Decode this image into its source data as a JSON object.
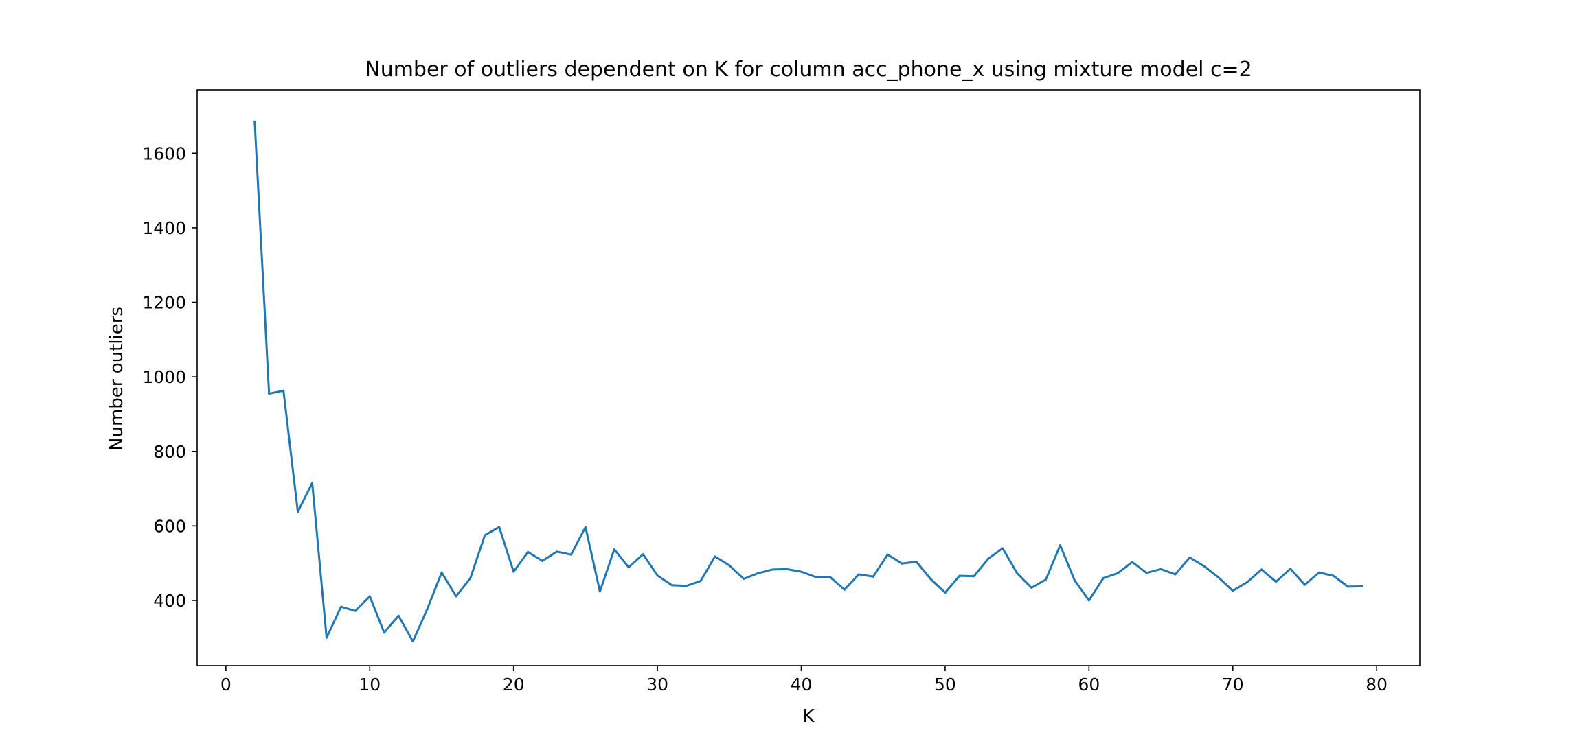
{
  "chart_data": {
    "type": "line",
    "title": "Number of outliers dependent on K for column acc_phone_x using mixture model c=2",
    "xlabel": "K",
    "ylabel": "Number outliers",
    "xlim": [
      -2,
      83
    ],
    "ylim": [
      225,
      1770
    ],
    "xticks": [
      0,
      10,
      20,
      30,
      40,
      50,
      60,
      70,
      80
    ],
    "yticks": [
      400,
      600,
      800,
      1000,
      1200,
      1400,
      1600
    ],
    "grid": false,
    "line_color": "#1f77b4",
    "series": [
      {
        "x": [
          2,
          3,
          4,
          5,
          6,
          7,
          8,
          9,
          10,
          11,
          12,
          13,
          14,
          15,
          16,
          17,
          18,
          19,
          20,
          21,
          22,
          23,
          24,
          25,
          26,
          27,
          28,
          29,
          30,
          31,
          32,
          33,
          34,
          35,
          36,
          37,
          38,
          39,
          40,
          41,
          42,
          43,
          44,
          45,
          46,
          47,
          48,
          49,
          50,
          51,
          52,
          53,
          54,
          55,
          56,
          57,
          58,
          59,
          60,
          61,
          62,
          63,
          64,
          65,
          66,
          67,
          68,
          69,
          70,
          71,
          72,
          73,
          74,
          75,
          76,
          77,
          78,
          79
        ],
        "values": [
          1685,
          955,
          963,
          638,
          715,
          300,
          383,
          372,
          411,
          314,
          359,
          290,
          377,
          475,
          411,
          460,
          575,
          597,
          477,
          530,
          506,
          531,
          523,
          597,
          424,
          537,
          489,
          524,
          467,
          441,
          439,
          452,
          518,
          494,
          458,
          473,
          483,
          484,
          477,
          463,
          463,
          429,
          470,
          464,
          523,
          499,
          504,
          457,
          421,
          466,
          465,
          512,
          540,
          473,
          434,
          456,
          548,
          454,
          400,
          460,
          473,
          503,
          474,
          484,
          470,
          515,
          492,
          462,
          426,
          449,
          483,
          450,
          485,
          442,
          475,
          466,
          437,
          438
        ]
      }
    ]
  }
}
